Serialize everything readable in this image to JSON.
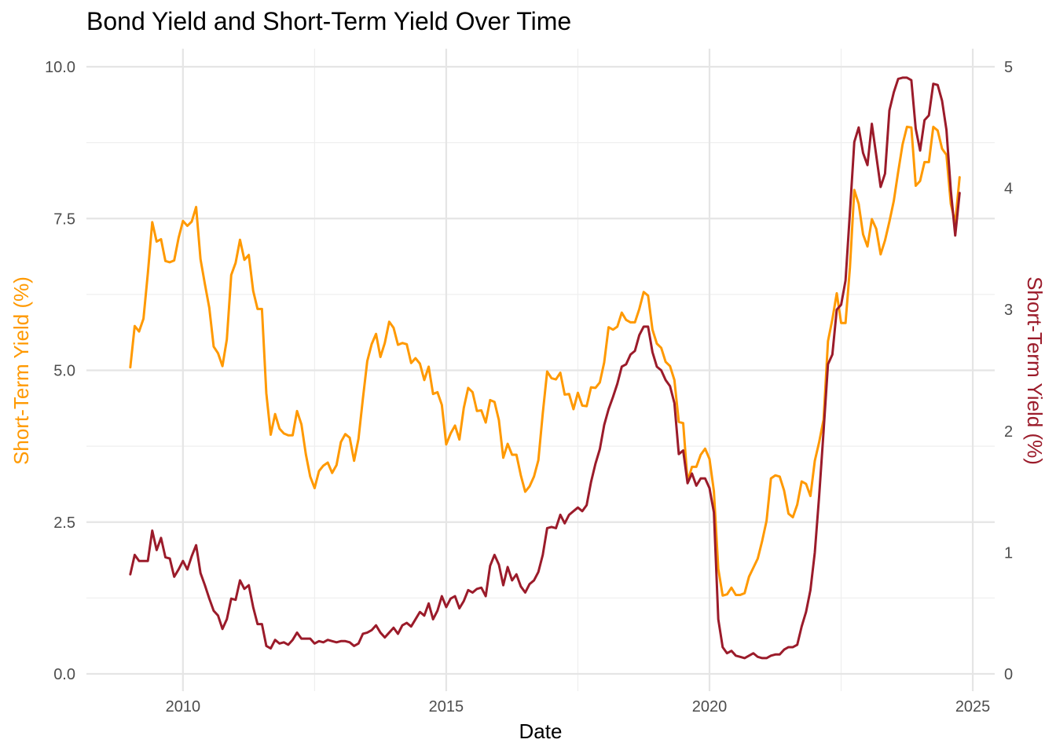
{
  "chart_data": {
    "type": "line",
    "title": "Bond Yield and Short-Term Yield Over Time",
    "xlabel": "Date",
    "ylabel_left": "Short-Term Yield (%)",
    "ylabel_right": "Short-Term Yield (%)",
    "x_ticks": [
      "2010",
      "2015",
      "2020",
      "2025"
    ],
    "y_left_ticks": [
      "0.0",
      "2.5",
      "5.0",
      "7.5",
      "10.0"
    ],
    "y_right_ticks": [
      "0",
      "1",
      "2",
      "3",
      "4",
      "5"
    ],
    "xlim": [
      "2008-03",
      "2025-06"
    ],
    "ylim_left": [
      0,
      10
    ],
    "ylim_right": [
      0,
      5
    ],
    "grid": true,
    "colors": {
      "bond": "#ff9900",
      "short": "#9b1b2a",
      "left_title": "#ff9900",
      "right_title": "#9b1b2a"
    },
    "series": [
      {
        "axis": "left",
        "color": "#ff9900",
        "x": [
          "2009-01",
          "2009-02",
          "2009-03",
          "2009-04",
          "2009-05",
          "2009-06",
          "2009-07",
          "2009-08",
          "2009-09",
          "2009-10",
          "2009-11",
          "2009-12",
          "2010-01",
          "2010-02",
          "2010-03",
          "2010-04",
          "2010-05",
          "2010-06",
          "2010-07",
          "2010-08",
          "2010-09",
          "2010-10",
          "2010-11",
          "2010-12",
          "2011-01",
          "2011-02",
          "2011-03",
          "2011-04",
          "2011-05",
          "2011-06",
          "2011-07",
          "2011-08",
          "2011-09",
          "2011-10",
          "2011-11",
          "2011-12",
          "2012-01",
          "2012-02",
          "2012-03",
          "2012-04",
          "2012-05",
          "2012-06",
          "2012-07",
          "2012-08",
          "2012-09",
          "2012-10",
          "2012-11",
          "2012-12",
          "2013-01",
          "2013-02",
          "2013-03",
          "2013-04",
          "2013-05",
          "2013-06",
          "2013-07",
          "2013-08",
          "2013-09",
          "2013-10",
          "2013-11",
          "2013-12",
          "2014-01",
          "2014-02",
          "2014-03",
          "2014-04",
          "2014-05",
          "2014-06",
          "2014-07",
          "2014-08",
          "2014-09",
          "2014-10",
          "2014-11",
          "2014-12",
          "2015-01",
          "2015-02",
          "2015-03",
          "2015-04",
          "2015-05",
          "2015-06",
          "2015-07",
          "2015-08",
          "2015-09",
          "2015-10",
          "2015-11",
          "2015-12",
          "2016-01",
          "2016-02",
          "2016-03",
          "2016-04",
          "2016-05",
          "2016-06",
          "2016-07",
          "2016-08",
          "2016-09",
          "2016-10",
          "2016-11",
          "2016-12",
          "2017-01",
          "2017-02",
          "2017-03",
          "2017-04",
          "2017-05",
          "2017-06",
          "2017-07",
          "2017-08",
          "2017-09",
          "2017-10",
          "2017-11",
          "2017-12",
          "2018-01",
          "2018-02",
          "2018-03",
          "2018-04",
          "2018-05",
          "2018-06",
          "2018-07",
          "2018-08",
          "2018-09",
          "2018-10",
          "2018-11",
          "2018-12",
          "2019-01",
          "2019-02",
          "2019-03",
          "2019-04",
          "2019-05",
          "2019-06",
          "2019-07",
          "2019-08",
          "2019-09",
          "2019-10",
          "2019-11",
          "2019-12",
          "2020-01",
          "2020-02",
          "2020-03",
          "2020-04",
          "2020-05",
          "2020-06",
          "2020-07",
          "2020-08",
          "2020-09",
          "2020-10",
          "2020-11",
          "2020-12",
          "2021-01",
          "2021-02",
          "2021-03",
          "2021-04",
          "2021-05",
          "2021-06",
          "2021-07",
          "2021-08",
          "2021-09",
          "2021-10",
          "2021-11",
          "2021-12",
          "2022-01",
          "2022-02",
          "2022-03",
          "2022-04",
          "2022-05",
          "2022-06",
          "2022-07",
          "2022-08",
          "2022-09",
          "2022-10",
          "2022-11",
          "2022-12",
          "2023-01",
          "2023-02",
          "2023-03",
          "2023-04",
          "2023-05",
          "2023-06",
          "2023-07",
          "2023-08",
          "2023-09",
          "2023-10",
          "2023-11",
          "2023-12",
          "2024-01",
          "2024-02",
          "2024-03",
          "2024-04",
          "2024-05",
          "2024-06",
          "2024-07",
          "2024-08",
          "2024-09",
          "2024-10"
        ],
        "values": [
          5.05,
          5.73,
          5.64,
          5.85,
          6.6,
          7.44,
          7.12,
          7.16,
          6.8,
          6.78,
          6.81,
          7.18,
          7.46,
          7.38,
          7.45,
          7.69,
          6.83,
          6.42,
          6.03,
          5.39,
          5.28,
          5.07,
          5.51,
          6.57,
          6.77,
          7.15,
          6.82,
          6.9,
          6.31,
          6.01,
          6.01,
          4.62,
          3.94,
          4.28,
          4.04,
          3.96,
          3.93,
          3.93,
          4.33,
          4.11,
          3.62,
          3.25,
          3.06,
          3.34,
          3.43,
          3.48,
          3.31,
          3.44,
          3.82,
          3.95,
          3.89,
          3.51,
          3.87,
          4.53,
          5.15,
          5.43,
          5.6,
          5.22,
          5.45,
          5.8,
          5.7,
          5.42,
          5.45,
          5.43,
          5.12,
          5.2,
          5.11,
          4.84,
          5.06,
          4.61,
          4.64,
          4.43,
          3.78,
          3.96,
          4.09,
          3.86,
          4.38,
          4.71,
          4.64,
          4.33,
          4.34,
          4.14,
          4.51,
          4.48,
          4.18,
          3.56,
          3.79,
          3.61,
          3.61,
          3.27,
          3.0,
          3.09,
          3.25,
          3.52,
          4.29,
          4.98,
          4.87,
          4.85,
          4.96,
          4.6,
          4.61,
          4.36,
          4.63,
          4.42,
          4.41,
          4.72,
          4.71,
          4.8,
          5.13,
          5.71,
          5.67,
          5.72,
          5.95,
          5.83,
          5.79,
          5.79,
          6.01,
          6.29,
          6.23,
          5.67,
          5.44,
          5.37,
          5.14,
          5.07,
          4.84,
          4.15,
          4.13,
          3.17,
          3.41,
          3.41,
          3.61,
          3.71,
          3.54,
          3.01,
          1.73,
          1.29,
          1.31,
          1.42,
          1.3,
          1.3,
          1.33,
          1.6,
          1.75,
          1.9,
          2.19,
          2.52,
          3.22,
          3.27,
          3.25,
          3.02,
          2.64,
          2.58,
          2.79,
          3.17,
          3.13,
          2.93,
          3.51,
          3.82,
          4.19,
          5.48,
          5.84,
          6.27,
          5.78,
          5.78,
          6.69,
          7.97,
          7.74,
          7.24,
          7.04,
          7.49,
          7.33,
          6.91,
          7.14,
          7.45,
          7.79,
          8.27,
          8.72,
          9.01,
          9.0,
          8.04,
          8.12,
          8.43,
          8.43,
          9.01,
          8.95,
          8.65,
          8.55,
          7.74,
          7.43,
          8.18
        ]
      },
      {
        "axis": "right",
        "color": "#9b1b2a",
        "x": [
          "2009-01",
          "2009-02",
          "2009-03",
          "2009-04",
          "2009-05",
          "2009-06",
          "2009-07",
          "2009-08",
          "2009-09",
          "2009-10",
          "2009-11",
          "2009-12",
          "2010-01",
          "2010-02",
          "2010-03",
          "2010-04",
          "2010-05",
          "2010-06",
          "2010-07",
          "2010-08",
          "2010-09",
          "2010-10",
          "2010-11",
          "2010-12",
          "2011-01",
          "2011-02",
          "2011-03",
          "2011-04",
          "2011-05",
          "2011-06",
          "2011-07",
          "2011-08",
          "2011-09",
          "2011-10",
          "2011-11",
          "2011-12",
          "2012-01",
          "2012-02",
          "2012-03",
          "2012-04",
          "2012-05",
          "2012-06",
          "2012-07",
          "2012-08",
          "2012-09",
          "2012-10",
          "2012-11",
          "2012-12",
          "2013-01",
          "2013-02",
          "2013-03",
          "2013-04",
          "2013-05",
          "2013-06",
          "2013-07",
          "2013-08",
          "2013-09",
          "2013-10",
          "2013-11",
          "2013-12",
          "2014-01",
          "2014-02",
          "2014-03",
          "2014-04",
          "2014-05",
          "2014-06",
          "2014-07",
          "2014-08",
          "2014-09",
          "2014-10",
          "2014-11",
          "2014-12",
          "2015-01",
          "2015-02",
          "2015-03",
          "2015-04",
          "2015-05",
          "2015-06",
          "2015-07",
          "2015-08",
          "2015-09",
          "2015-10",
          "2015-11",
          "2015-12",
          "2016-01",
          "2016-02",
          "2016-03",
          "2016-04",
          "2016-05",
          "2016-06",
          "2016-07",
          "2016-08",
          "2016-09",
          "2016-10",
          "2016-11",
          "2016-12",
          "2017-01",
          "2017-02",
          "2017-03",
          "2017-04",
          "2017-05",
          "2017-06",
          "2017-07",
          "2017-08",
          "2017-09",
          "2017-10",
          "2017-11",
          "2017-12",
          "2018-01",
          "2018-02",
          "2018-03",
          "2018-04",
          "2018-05",
          "2018-06",
          "2018-07",
          "2018-08",
          "2018-09",
          "2018-10",
          "2018-11",
          "2018-12",
          "2019-01",
          "2019-02",
          "2019-03",
          "2019-04",
          "2019-05",
          "2019-06",
          "2019-07",
          "2019-08",
          "2019-09",
          "2019-10",
          "2019-11",
          "2019-12",
          "2020-01",
          "2020-02",
          "2020-03",
          "2020-04",
          "2020-05",
          "2020-06",
          "2020-07",
          "2020-08",
          "2020-09",
          "2020-10",
          "2020-11",
          "2020-12",
          "2021-01",
          "2021-02",
          "2021-03",
          "2021-04",
          "2021-05",
          "2021-06",
          "2021-07",
          "2021-08",
          "2021-09",
          "2021-10",
          "2021-11",
          "2021-12",
          "2022-01",
          "2022-02",
          "2022-03",
          "2022-04",
          "2022-05",
          "2022-06",
          "2022-07",
          "2022-08",
          "2022-09",
          "2022-10",
          "2022-11",
          "2022-12",
          "2023-01",
          "2023-02",
          "2023-03",
          "2023-04",
          "2023-05",
          "2023-06",
          "2023-07",
          "2023-08",
          "2023-09",
          "2023-10",
          "2023-11",
          "2023-12",
          "2024-01",
          "2024-02",
          "2024-03",
          "2024-04",
          "2024-05",
          "2024-06",
          "2024-07",
          "2024-08",
          "2024-09",
          "2024-10"
        ],
        "values": [
          0.82,
          0.98,
          0.93,
          0.93,
          0.93,
          1.18,
          1.02,
          1.12,
          0.96,
          0.95,
          0.8,
          0.86,
          0.93,
          0.86,
          0.97,
          1.06,
          0.83,
          0.73,
          0.62,
          0.52,
          0.48,
          0.37,
          0.45,
          0.62,
          0.61,
          0.77,
          0.7,
          0.73,
          0.55,
          0.41,
          0.41,
          0.23,
          0.21,
          0.28,
          0.25,
          0.26,
          0.24,
          0.28,
          0.34,
          0.29,
          0.29,
          0.29,
          0.25,
          0.27,
          0.26,
          0.28,
          0.27,
          0.26,
          0.27,
          0.27,
          0.26,
          0.23,
          0.25,
          0.33,
          0.34,
          0.36,
          0.4,
          0.34,
          0.3,
          0.34,
          0.38,
          0.33,
          0.4,
          0.42,
          0.39,
          0.45,
          0.51,
          0.48,
          0.58,
          0.45,
          0.52,
          0.64,
          0.55,
          0.62,
          0.64,
          0.54,
          0.6,
          0.69,
          0.67,
          0.7,
          0.71,
          0.64,
          0.89,
          0.98,
          0.9,
          0.73,
          0.88,
          0.77,
          0.82,
          0.72,
          0.67,
          0.74,
          0.77,
          0.84,
          0.98,
          1.2,
          1.21,
          1.2,
          1.31,
          1.24,
          1.31,
          1.34,
          1.37,
          1.34,
          1.39,
          1.58,
          1.73,
          1.85,
          2.05,
          2.18,
          2.28,
          2.39,
          2.53,
          2.55,
          2.63,
          2.66,
          2.79,
          2.86,
          2.86,
          2.65,
          2.53,
          2.5,
          2.42,
          2.37,
          2.23,
          1.81,
          1.84,
          1.57,
          1.65,
          1.55,
          1.61,
          1.61,
          1.53,
          1.33,
          0.45,
          0.22,
          0.17,
          0.19,
          0.15,
          0.14,
          0.13,
          0.15,
          0.17,
          0.14,
          0.13,
          0.13,
          0.15,
          0.16,
          0.16,
          0.2,
          0.22,
          0.22,
          0.24,
          0.39,
          0.51,
          0.69,
          1.0,
          1.47,
          2.0,
          2.55,
          2.63,
          3.0,
          3.04,
          3.24,
          3.8,
          4.38,
          4.5,
          4.29,
          4.19,
          4.53,
          4.27,
          4.01,
          4.12,
          4.64,
          4.79,
          4.9,
          4.91,
          4.91,
          4.89,
          4.49,
          4.31,
          4.56,
          4.6,
          4.86,
          4.85,
          4.72,
          4.48,
          3.98,
          3.61,
          3.96
        ]
      }
    ]
  }
}
